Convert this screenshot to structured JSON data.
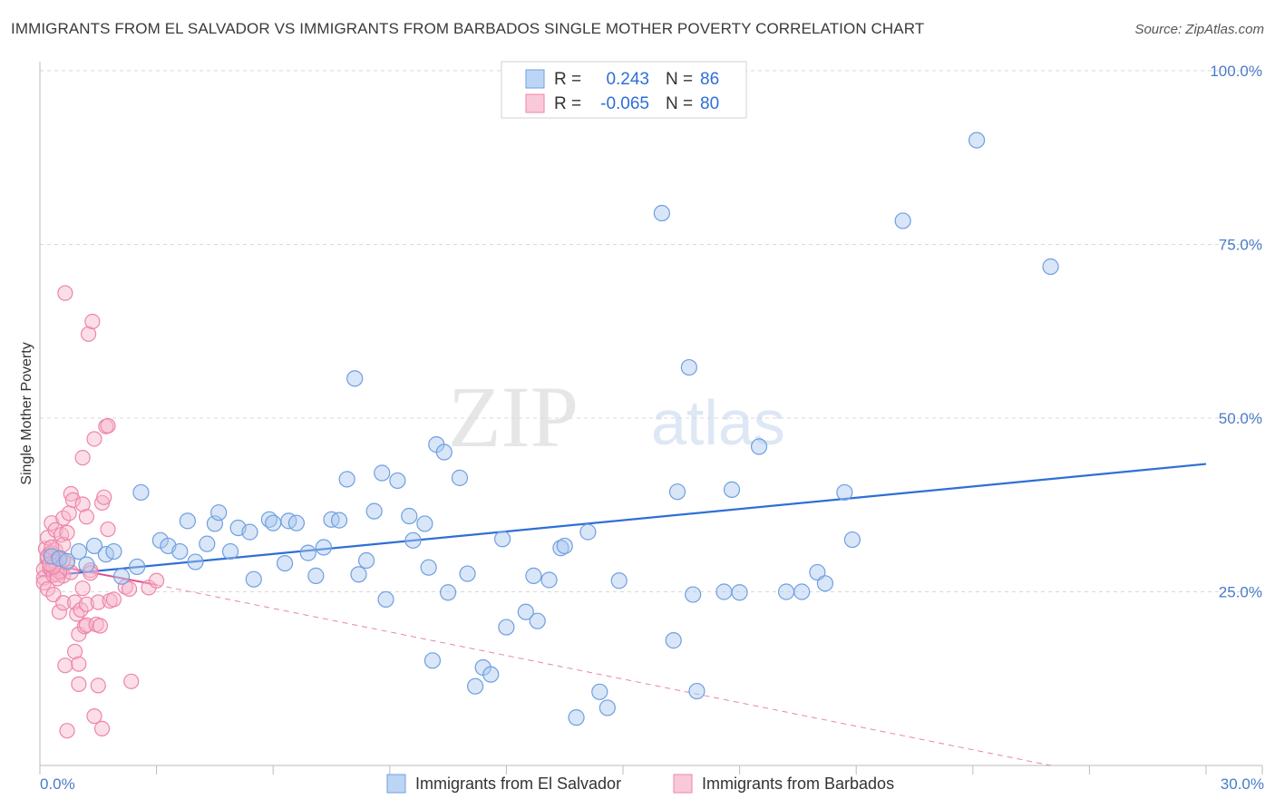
{
  "header": {
    "title": "IMMIGRANTS FROM EL SALVADOR VS IMMIGRANTS FROM BARBADOS SINGLE MOTHER POVERTY CORRELATION CHART",
    "source": "Source: ZipAtlas.com"
  },
  "watermark": {
    "zip": "ZIP",
    "atlas": "atlas"
  },
  "colors": {
    "blue_fill": "#a8c8f0",
    "blue_stroke": "#6f9fe0",
    "blue_line": "#2f6fd6",
    "pink_fill": "#f7b6cb",
    "pink_stroke": "#ee85a8",
    "pink_line": "#e0508a",
    "tick_text": "#4a7cc9",
    "grid": "#d9d9d9"
  },
  "legend": {
    "row1": {
      "r_label": "R =",
      "r_value": "0.243",
      "n_label": "N =",
      "n_value": "86"
    },
    "row2": {
      "r_label": "R =",
      "r_value": "-0.065",
      "n_label": "N =",
      "n_value": "80"
    }
  },
  "chart_data": {
    "type": "scatter",
    "title": "IMMIGRANTS FROM EL SALVADOR VS IMMIGRANTS FROM BARBADOS SINGLE MOTHER POVERTY CORRELATION CHART",
    "xlabel": "",
    "ylabel": "Single Mother Poverty",
    "xlim": [
      0,
      30
    ],
    "ylim": [
      0,
      100
    ],
    "x_tick_labels": [
      "0.0%",
      "30.0%"
    ],
    "y_ticks": [
      25,
      50,
      75,
      100
    ],
    "y_tick_labels": [
      "25.0%",
      "50.0%",
      "75.0%",
      "100.0%"
    ],
    "grid": true,
    "legend_position": "top-center",
    "series": [
      {
        "name": "Immigrants from El Salvador",
        "color": "#6f9fe0",
        "r": 0.243,
        "n": 86,
        "trend": {
          "x": [
            0,
            30
          ],
          "y": [
            27.2,
            43.4
          ]
        },
        "points": [
          [
            0.3,
            30.1
          ],
          [
            0.5,
            29.8
          ],
          [
            0.7,
            29.4
          ],
          [
            1.0,
            30.8
          ],
          [
            1.2,
            28.9
          ],
          [
            1.4,
            31.6
          ],
          [
            1.7,
            30.4
          ],
          [
            1.9,
            30.8
          ],
          [
            2.1,
            27.2
          ],
          [
            2.5,
            28.6
          ],
          [
            2.6,
            39.3
          ],
          [
            3.1,
            32.4
          ],
          [
            3.3,
            31.6
          ],
          [
            3.6,
            30.8
          ],
          [
            3.8,
            35.2
          ],
          [
            4.0,
            29.3
          ],
          [
            4.3,
            31.9
          ],
          [
            4.5,
            34.8
          ],
          [
            4.6,
            36.4
          ],
          [
            4.9,
            30.8
          ],
          [
            5.1,
            34.2
          ],
          [
            5.4,
            33.6
          ],
          [
            5.5,
            26.8
          ],
          [
            5.9,
            35.4
          ],
          [
            6.0,
            34.9
          ],
          [
            6.3,
            29.1
          ],
          [
            6.4,
            35.2
          ],
          [
            6.6,
            34.9
          ],
          [
            6.9,
            30.6
          ],
          [
            7.1,
            27.3
          ],
          [
            7.3,
            31.4
          ],
          [
            7.5,
            35.4
          ],
          [
            7.7,
            35.3
          ],
          [
            7.9,
            41.2
          ],
          [
            8.1,
            55.7
          ],
          [
            8.2,
            27.5
          ],
          [
            8.4,
            29.5
          ],
          [
            8.6,
            36.6
          ],
          [
            8.8,
            42.1
          ],
          [
            8.9,
            23.9
          ],
          [
            9.2,
            41.0
          ],
          [
            9.5,
            35.9
          ],
          [
            9.6,
            32.4
          ],
          [
            9.9,
            34.8
          ],
          [
            10.1,
            15.1
          ],
          [
            10.2,
            46.2
          ],
          [
            10.4,
            45.1
          ],
          [
            10.5,
            24.9
          ],
          [
            10.8,
            41.4
          ],
          [
            11.0,
            27.6
          ],
          [
            11.2,
            11.4
          ],
          [
            11.4,
            14.1
          ],
          [
            11.6,
            13.1
          ],
          [
            11.9,
            32.6
          ],
          [
            12.0,
            19.9
          ],
          [
            12.5,
            22.1
          ],
          [
            12.7,
            27.3
          ],
          [
            12.8,
            20.8
          ],
          [
            13.1,
            26.7
          ],
          [
            13.4,
            31.3
          ],
          [
            13.5,
            31.6
          ],
          [
            13.8,
            6.9
          ],
          [
            14.1,
            33.6
          ],
          [
            14.4,
            10.6
          ],
          [
            14.6,
            8.3
          ],
          [
            14.9,
            26.6
          ],
          [
            16.0,
            79.5
          ],
          [
            16.3,
            18.0
          ],
          [
            16.4,
            39.4
          ],
          [
            16.7,
            57.3
          ],
          [
            16.8,
            24.6
          ],
          [
            16.9,
            10.7
          ],
          [
            17.8,
            39.7
          ],
          [
            18.5,
            45.9
          ],
          [
            19.2,
            25.0
          ],
          [
            19.6,
            25.0
          ],
          [
            20.0,
            27.8
          ],
          [
            20.2,
            26.2
          ],
          [
            20.7,
            39.3
          ],
          [
            20.9,
            32.5
          ],
          [
            22.2,
            78.4
          ],
          [
            24.1,
            90.0
          ],
          [
            26.0,
            71.8
          ],
          [
            17.6,
            25.0
          ],
          [
            18.0,
            24.9
          ],
          [
            10.0,
            28.5
          ]
        ]
      },
      {
        "name": "Immigrants from Barbados",
        "color": "#ee85a8",
        "r": -0.065,
        "n": 80,
        "trend": {
          "x": [
            0,
            3.0
          ],
          "y": [
            29.2,
            26.0
          ]
        },
        "trend_ext": {
          "x": [
            3.0,
            26.0
          ],
          "y": [
            26.0,
            0.0
          ]
        },
        "points": [
          [
            0.1,
            28.2
          ],
          [
            0.1,
            27.0
          ],
          [
            0.1,
            26.3
          ],
          [
            0.15,
            31.2
          ],
          [
            0.2,
            29.9
          ],
          [
            0.2,
            32.8
          ],
          [
            0.2,
            25.4
          ],
          [
            0.25,
            30.5
          ],
          [
            0.25,
            28.4
          ],
          [
            0.3,
            34.9
          ],
          [
            0.3,
            30.6
          ],
          [
            0.3,
            28.3
          ],
          [
            0.35,
            27.4
          ],
          [
            0.35,
            24.6
          ],
          [
            0.4,
            33.9
          ],
          [
            0.4,
            31.0
          ],
          [
            0.4,
            28.9
          ],
          [
            0.45,
            27.5
          ],
          [
            0.5,
            29.7
          ],
          [
            0.5,
            22.1
          ],
          [
            0.55,
            33.2
          ],
          [
            0.55,
            28.0
          ],
          [
            0.6,
            35.6
          ],
          [
            0.6,
            31.8
          ],
          [
            0.6,
            27.3
          ],
          [
            0.6,
            23.4
          ],
          [
            0.65,
            68.0
          ],
          [
            0.65,
            14.4
          ],
          [
            0.7,
            33.5
          ],
          [
            0.7,
            29.1
          ],
          [
            0.7,
            5.0
          ],
          [
            0.75,
            36.3
          ],
          [
            0.8,
            39.1
          ],
          [
            0.8,
            27.8
          ],
          [
            0.85,
            38.2
          ],
          [
            0.9,
            16.4
          ],
          [
            0.9,
            23.5
          ],
          [
            0.95,
            21.8
          ],
          [
            1.0,
            11.7
          ],
          [
            1.0,
            14.6
          ],
          [
            1.0,
            18.9
          ],
          [
            1.05,
            22.4
          ],
          [
            1.1,
            25.5
          ],
          [
            1.1,
            44.3
          ],
          [
            1.1,
            37.6
          ],
          [
            1.15,
            20.0
          ],
          [
            1.2,
            35.8
          ],
          [
            1.2,
            23.2
          ],
          [
            1.2,
            20.2
          ],
          [
            1.25,
            62.1
          ],
          [
            1.3,
            28.1
          ],
          [
            1.3,
            27.7
          ],
          [
            1.35,
            63.9
          ],
          [
            1.4,
            47.0
          ],
          [
            1.4,
            7.1
          ],
          [
            1.45,
            20.3
          ],
          [
            1.5,
            23.5
          ],
          [
            1.5,
            11.5
          ],
          [
            1.55,
            20.1
          ],
          [
            1.6,
            5.3
          ],
          [
            1.6,
            37.8
          ],
          [
            1.65,
            38.6
          ],
          [
            1.7,
            48.8
          ],
          [
            1.75,
            48.9
          ],
          [
            1.75,
            34.0
          ],
          [
            1.8,
            23.7
          ],
          [
            1.9,
            23.9
          ],
          [
            2.2,
            25.7
          ],
          [
            2.3,
            25.4
          ],
          [
            2.35,
            12.1
          ],
          [
            2.8,
            25.6
          ],
          [
            3.0,
            26.6
          ],
          [
            0.2,
            30.1
          ],
          [
            0.3,
            31.4
          ],
          [
            0.4,
            29.3
          ],
          [
            0.5,
            27.9
          ],
          [
            0.6,
            29.6
          ],
          [
            0.45,
            26.9
          ],
          [
            0.35,
            28.6
          ],
          [
            0.25,
            29.0
          ]
        ]
      }
    ]
  },
  "bottom_legend": {
    "item1": "Immigrants from El Salvador",
    "item2": "Immigrants from Barbados"
  }
}
